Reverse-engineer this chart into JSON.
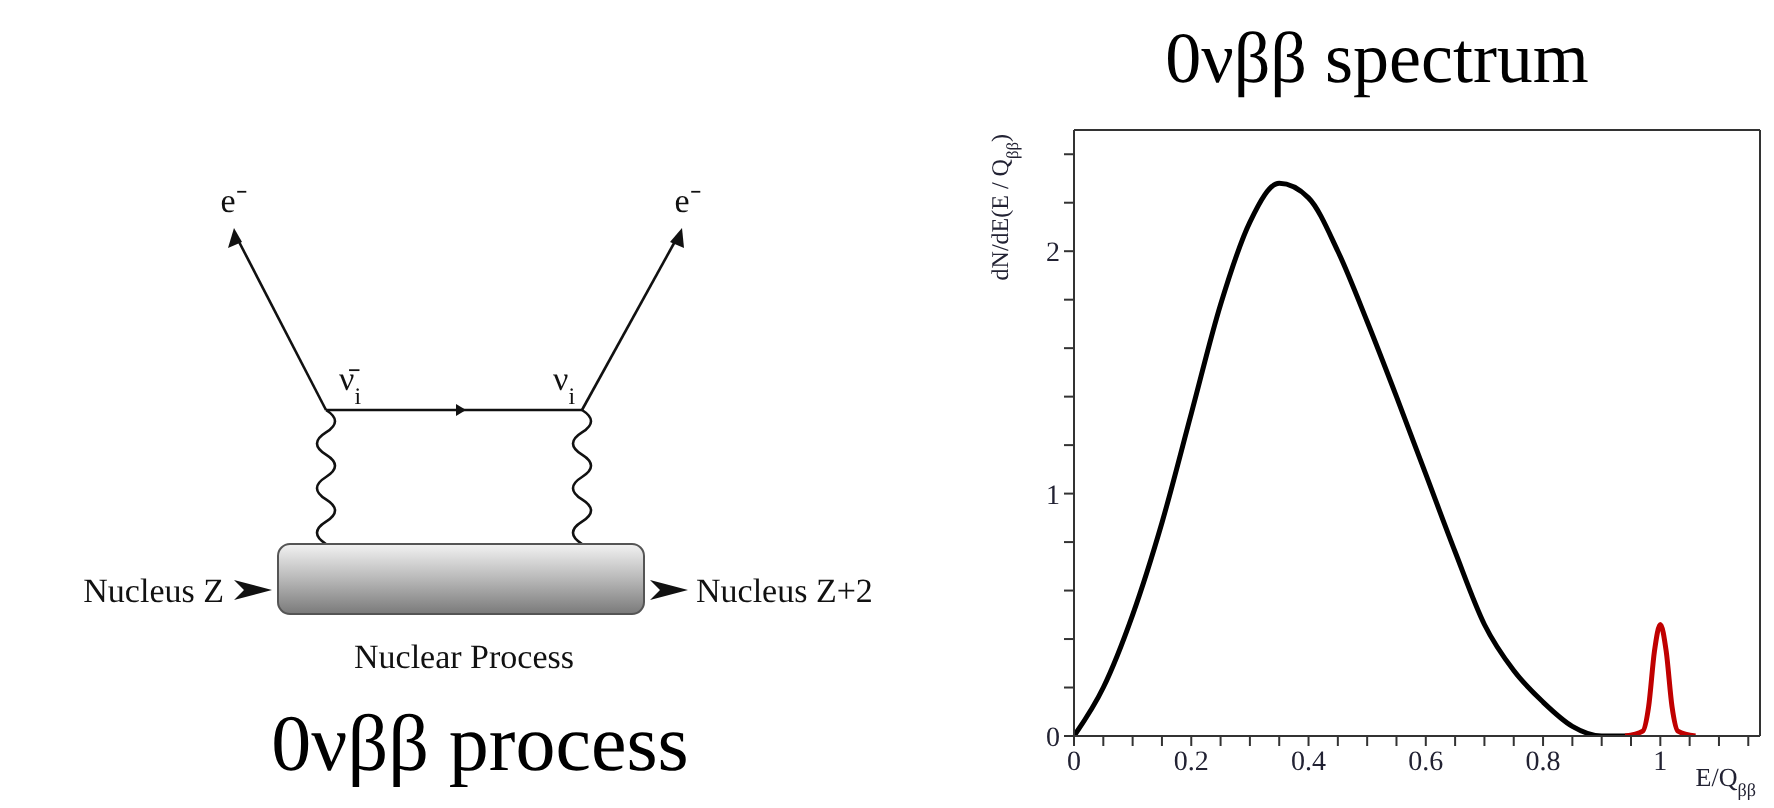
{
  "chart_data": [
    {
      "type": "other",
      "title": "0νββ process",
      "annotations": [
        "e⁻",
        "e⁻",
        "ν̄$_{i}$",
        "ν$_{i}$",
        "Nucleus Z",
        "Nucleus Z+2",
        "Nuclear Process"
      ]
    },
    {
      "type": "line",
      "title": "0νββ spectrum",
      "xlabel": "E/Q$_{ββ}$",
      "ylabel": "dN/dE(E / Q$_{ββ}$)",
      "xlim": [
        0,
        1.17
      ],
      "ylim": [
        0,
        2.5
      ],
      "xticks": [
        0,
        {
          "value": 0.05,
          "label": null
        },
        {
          "value": 0.1,
          "label": null
        },
        {
          "value": 0.15,
          "label": null
        },
        0.2,
        {
          "value": 0.25,
          "label": null
        },
        {
          "value": 0.3,
          "label": null
        },
        {
          "value": 0.35,
          "label": null
        },
        0.4,
        {
          "value": 0.45,
          "label": null
        },
        {
          "value": 0.5,
          "label": null
        },
        {
          "value": 0.55,
          "label": null
        },
        0.6,
        {
          "value": 0.65,
          "label": null
        },
        {
          "value": 0.7,
          "label": null
        },
        {
          "value": 0.75,
          "label": null
        },
        0.8,
        {
          "value": 0.85,
          "label": null
        },
        {
          "value": 0.9,
          "label": null
        },
        {
          "value": 0.95,
          "label": null
        },
        1,
        {
          "value": 1.05,
          "label": null
        },
        {
          "value": 1.1,
          "label": null
        },
        {
          "value": 1.15,
          "label": null
        }
      ],
      "yticks": [
        0,
        {
          "value": 0.2,
          "label": null
        },
        {
          "value": 0.4,
          "label": null
        },
        {
          "value": 0.6,
          "label": null
        },
        {
          "value": 0.8,
          "label": null
        },
        1,
        {
          "value": 1.2,
          "label": null
        },
        {
          "value": 1.4,
          "label": null
        },
        {
          "value": 1.6,
          "label": null
        },
        {
          "value": 1.8,
          "label": null
        },
        2,
        {
          "value": 2.2,
          "label": null
        },
        {
          "value": 2.4,
          "label": null
        }
      ],
      "series": [
        {
          "color": "#000000",
          "x": [
            0,
            0.05,
            0.1,
            0.15,
            0.2,
            0.25,
            0.3,
            0.35,
            0.4,
            0.45,
            0.5,
            0.55,
            0.6,
            0.65,
            0.7,
            0.75,
            0.8,
            0.85,
            0.9,
            0.95
          ],
          "values": [
            0,
            0.2,
            0.5,
            0.88,
            1.33,
            1.78,
            2.12,
            2.28,
            2.22,
            2.0,
            1.71,
            1.4,
            1.08,
            0.76,
            0.46,
            0.27,
            0.14,
            0.04,
            0.0,
            0.0
          ]
        },
        {
          "color": "#c00000",
          "x": [
            0.94,
            0.97,
            0.98,
            0.99,
            1.0,
            1.01,
            1.02,
            1.03,
            1.06
          ],
          "values": [
            0,
            0.02,
            0.12,
            0.35,
            0.46,
            0.35,
            0.12,
            0.02,
            0
          ]
        }
      ]
    }
  ]
}
